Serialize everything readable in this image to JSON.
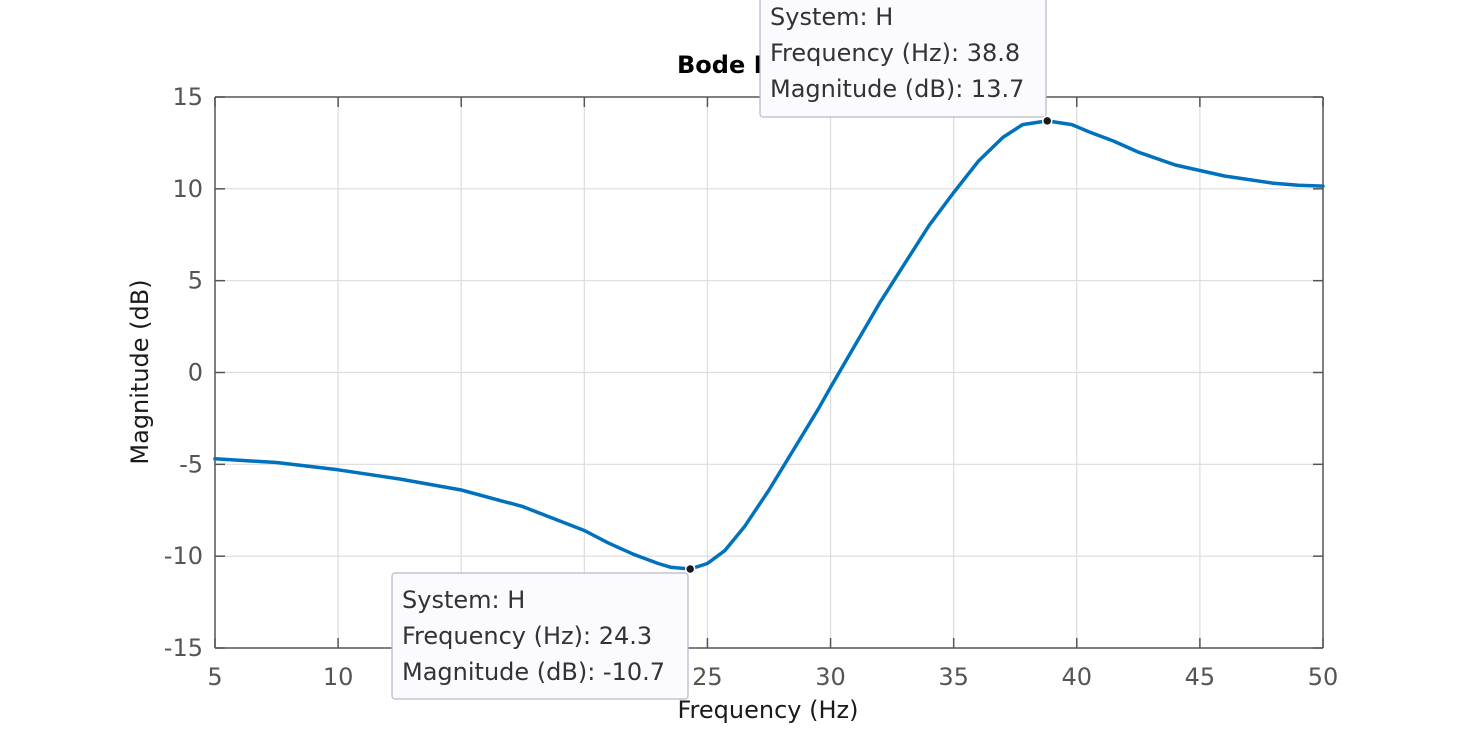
{
  "chart_data": {
    "type": "line",
    "title": "Bode D",
    "xlabel": "Frequency  (Hz)",
    "ylabel": "Magnitude (dB)",
    "xlim": [
      5,
      50
    ],
    "ylim": [
      -15,
      15
    ],
    "xticks": [
      5,
      10,
      15,
      20,
      25,
      30,
      35,
      40,
      45,
      50
    ],
    "yticks": [
      -15,
      -10,
      -5,
      0,
      5,
      10,
      15
    ],
    "xtick_labels": [
      "5",
      "10",
      "",
      "",
      "25",
      "30",
      "35",
      "40",
      "45",
      "50"
    ],
    "ytick_labels": [
      "-15",
      "-10",
      "-5",
      "0",
      "5",
      "10",
      "15"
    ],
    "grid": true,
    "series": [
      {
        "color": "#0072BD",
        "x": [
          5,
          7.5,
          10,
          12.5,
          15,
          17.5,
          20,
          21,
          22,
          23,
          23.5,
          24.3,
          25,
          25.7,
          26.5,
          27.5,
          28.5,
          29.5,
          30,
          31,
          32,
          33,
          34,
          35,
          36,
          37,
          37.8,
          38.8,
          39.8,
          40.5,
          41.5,
          42.5,
          44,
          46,
          48,
          49,
          50
        ],
        "y": [
          -4.7,
          -4.9,
          -5.3,
          -5.8,
          -6.4,
          -7.3,
          -8.6,
          -9.3,
          -9.9,
          -10.4,
          -10.6,
          -10.7,
          -10.4,
          -9.7,
          -8.4,
          -6.4,
          -4.2,
          -2.0,
          -0.8,
          1.5,
          3.8,
          5.9,
          8.0,
          9.8,
          11.5,
          12.8,
          13.5,
          13.7,
          13.5,
          13.1,
          12.6,
          12.0,
          11.3,
          10.7,
          10.3,
          10.2,
          10.15
        ]
      }
    ],
    "datatips": [
      {
        "x": 38.8,
        "y": 13.7,
        "lines": [
          "System: H",
          "Frequency (Hz): 38.8",
          "Magnitude (dB): 13.7"
        ]
      },
      {
        "x": 24.3,
        "y": -10.7,
        "lines": [
          "System: H",
          "Frequency (Hz): 24.3",
          "Magnitude (dB): -10.7"
        ]
      }
    ]
  }
}
